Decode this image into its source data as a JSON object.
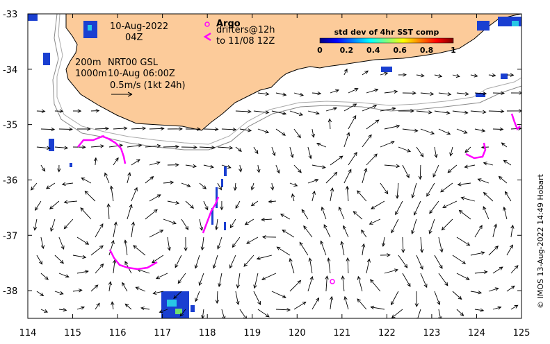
{
  "map": {
    "date_line": "10-Aug-2022",
    "time_line": "04Z",
    "depth_line_1": "200m",
    "depth_line_2": "1000m",
    "product_line_1": "NRT00 GSL",
    "product_line_2": "10-Aug 06:00Z",
    "scale_label": "0.5m/s (1kt 24h)",
    "argo_label": "Argo",
    "drifters_line_1": "drifters@12h",
    "drifters_line_2": "to 11/08 12Z",
    "side_credit": "© IMOS 13-Aug-2022 14:49 Hobart"
  },
  "colorbar": {
    "title": "std dev of 4hr SST comp",
    "ticks": [
      "0",
      "0.2",
      "0.4",
      "0.6",
      "0.8",
      "1"
    ],
    "min": 0,
    "max": 1
  },
  "axes": {
    "lon_ticks": [
      "114",
      "115",
      "116",
      "117",
      "118",
      "119",
      "120",
      "121",
      "122",
      "123",
      "124",
      "125"
    ],
    "lat_ticks": [
      "-33",
      "-34",
      "-35",
      "-36",
      "-37",
      "-38"
    ],
    "lon_range": [
      114,
      125
    ],
    "lat_range": [
      -38.5,
      -33
    ]
  },
  "colors": {
    "land": "#fccb9a",
    "drifter": "#ff00ff",
    "argo": "#ff00ff",
    "sst_patch": "#1a3fd1",
    "contour": "#aaaaaa"
  }
}
